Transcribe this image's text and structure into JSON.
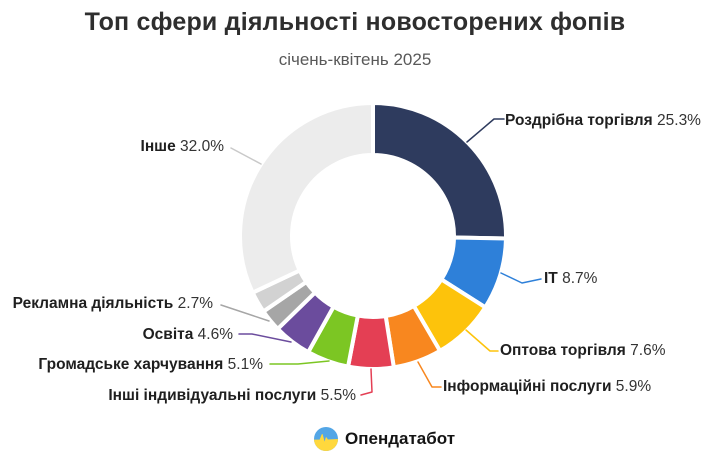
{
  "header": {
    "title": "Топ сфери діяльності новосторених фопів",
    "subtitle": "січень-квітень 2025"
  },
  "chart_data": {
    "type": "pie",
    "style": "donut",
    "title": "Топ сфери діяльності новосторених фопів",
    "subtitle": "січень-квітень 2025",
    "unit": "%",
    "start_angle_deg": 0,
    "direction": "clockwise",
    "segments": [
      {
        "name": "Роздрібна торгівля",
        "value": 25.3,
        "pct": "25.3%",
        "color": "#2e3b5e"
      },
      {
        "name": "ІТ",
        "value": 8.7,
        "pct": "8.7%",
        "color": "#2e80d9"
      },
      {
        "name": "Оптова торгівля",
        "value": 7.6,
        "pct": "7.6%",
        "color": "#fdc30b"
      },
      {
        "name": "Інформаційні послуги",
        "value": 5.9,
        "pct": "5.9%",
        "color": "#f8871f"
      },
      {
        "name": "Інші індивідуальні послуги",
        "value": 5.5,
        "pct": "5.5%",
        "color": "#e43f54"
      },
      {
        "name": "Громадське харчування",
        "value": 5.1,
        "pct": "5.1%",
        "color": "#7cc623"
      },
      {
        "name": "Освіта",
        "value": 4.6,
        "pct": "4.6%",
        "color": "#6b4c9d"
      },
      {
        "name": "Рекламна діяльність",
        "value": 2.7,
        "pct": "2.7%",
        "color": "#a6a6a6"
      },
      {
        "name": "",
        "value": 2.6,
        "pct": "",
        "color": "#d2d2d2"
      },
      {
        "name": "Інше",
        "value": 32.0,
        "pct": "32.0%",
        "color": "#ececec"
      }
    ]
  },
  "footer": {
    "brand": "Опендатабот",
    "logo_colors": {
      "blue": "#53a6e6",
      "yellow": "#ffd83d"
    }
  }
}
